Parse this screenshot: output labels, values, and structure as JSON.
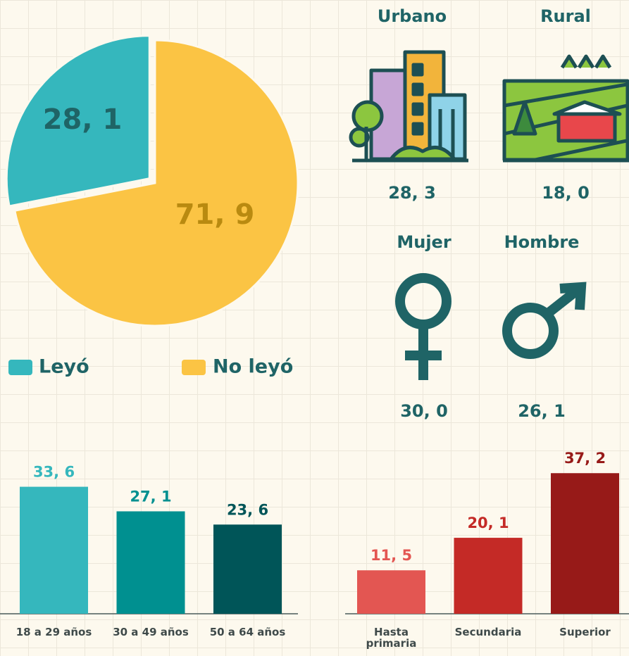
{
  "chart_data": [
    {
      "type": "pie",
      "categories": [
        "Leyó",
        "No leyó"
      ],
      "values": [
        28.1,
        71.9
      ],
      "value_labels": [
        "28, 1",
        "71, 9"
      ],
      "colors": [
        "#35b7bd",
        "#fbc444"
      ],
      "label_colors": [
        "#1f6466",
        "#b98a10"
      ]
    },
    {
      "type": "stat",
      "categories": [
        "Urbano",
        "Rural"
      ],
      "values": [
        28.3,
        18.0
      ],
      "value_labels": [
        "28, 3",
        "18, 0"
      ]
    },
    {
      "type": "stat",
      "categories": [
        "Mujer",
        "Hombre"
      ],
      "values": [
        30.0,
        26.1
      ],
      "value_labels": [
        "30, 0",
        "26, 1"
      ]
    },
    {
      "type": "bar",
      "categories": [
        "18 a 29 años",
        "30 a 49 años",
        "50 a 64 años"
      ],
      "values": [
        33.6,
        27.1,
        23.6
      ],
      "value_labels": [
        "33, 6",
        "27, 1",
        "23, 6"
      ],
      "colors": [
        "#35b7bd",
        "#009090",
        "#005558"
      ]
    },
    {
      "type": "bar",
      "categories": [
        "Hasta primaria",
        "Secundaria",
        "Superior"
      ],
      "values": [
        11.5,
        20.1,
        37.2
      ],
      "value_labels": [
        "11, 5",
        "20, 1",
        "37, 2"
      ],
      "colors": [
        "#e35652",
        "#c42a26",
        "#971a18"
      ]
    }
  ]
}
